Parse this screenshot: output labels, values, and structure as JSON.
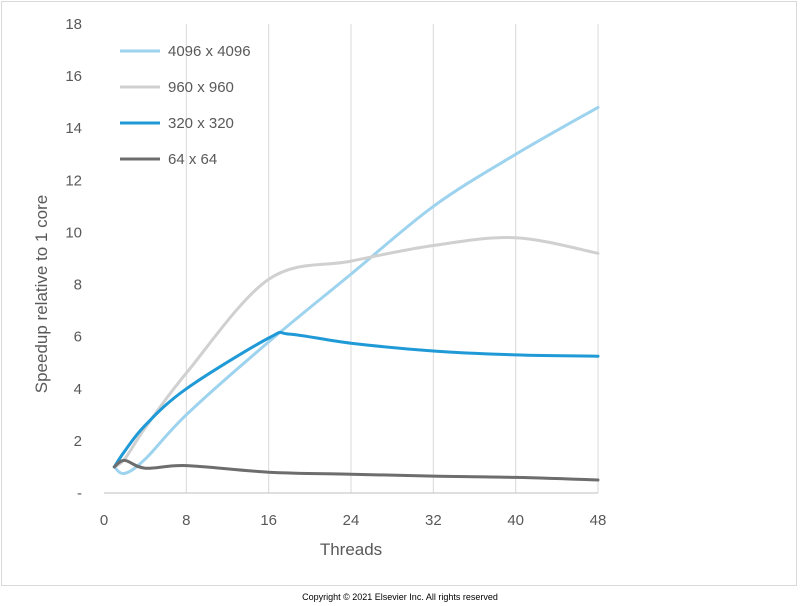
{
  "chart_data": {
    "type": "line",
    "xlabel": "Threads",
    "ylabel": "Speedup relative to 1 core",
    "xlim": [
      0,
      48
    ],
    "ylim": [
      0,
      18
    ],
    "xticks": [
      0,
      8,
      16,
      24,
      32,
      40,
      48
    ],
    "yticks": [
      0,
      2,
      4,
      6,
      8,
      10,
      12,
      14,
      16,
      18
    ],
    "ytick_labels": [
      "-",
      "2",
      "4",
      "6",
      "8",
      "10",
      "12",
      "14",
      "16",
      "18"
    ],
    "grid": "vertical",
    "legend_position": "top-left",
    "series": [
      {
        "name": "4096 x 4096",
        "color": "#9dd3ee",
        "x": [
          1,
          2,
          4,
          8,
          16,
          24,
          32,
          40,
          48
        ],
        "y": [
          1.0,
          0.75,
          1.3,
          3.0,
          5.8,
          8.4,
          11.0,
          13.0,
          14.8
        ]
      },
      {
        "name": "960 x 960",
        "color": "#d0d0d0",
        "x": [
          1,
          2,
          4,
          8,
          16,
          24,
          32,
          40,
          48
        ],
        "y": [
          1.0,
          1.3,
          2.5,
          4.6,
          8.2,
          8.9,
          9.5,
          9.8,
          9.2
        ]
      },
      {
        "name": "320  x 320",
        "color": "#1f9ad6",
        "x": [
          1,
          2,
          4,
          8,
          16,
          18,
          24,
          32,
          40,
          48
        ],
        "y": [
          1.0,
          1.6,
          2.6,
          4.0,
          5.95,
          6.1,
          5.75,
          5.45,
          5.3,
          5.25
        ]
      },
      {
        "name": "64 x 64",
        "color": "#6d6d6d",
        "x": [
          1,
          2,
          4,
          8,
          16,
          24,
          32,
          40,
          48
        ],
        "y": [
          1.0,
          1.25,
          0.95,
          1.05,
          0.8,
          0.72,
          0.65,
          0.6,
          0.5
        ]
      }
    ]
  },
  "footer": {
    "copyright": "Copyright © 2021 Elsevier Inc. All rights reserved"
  }
}
